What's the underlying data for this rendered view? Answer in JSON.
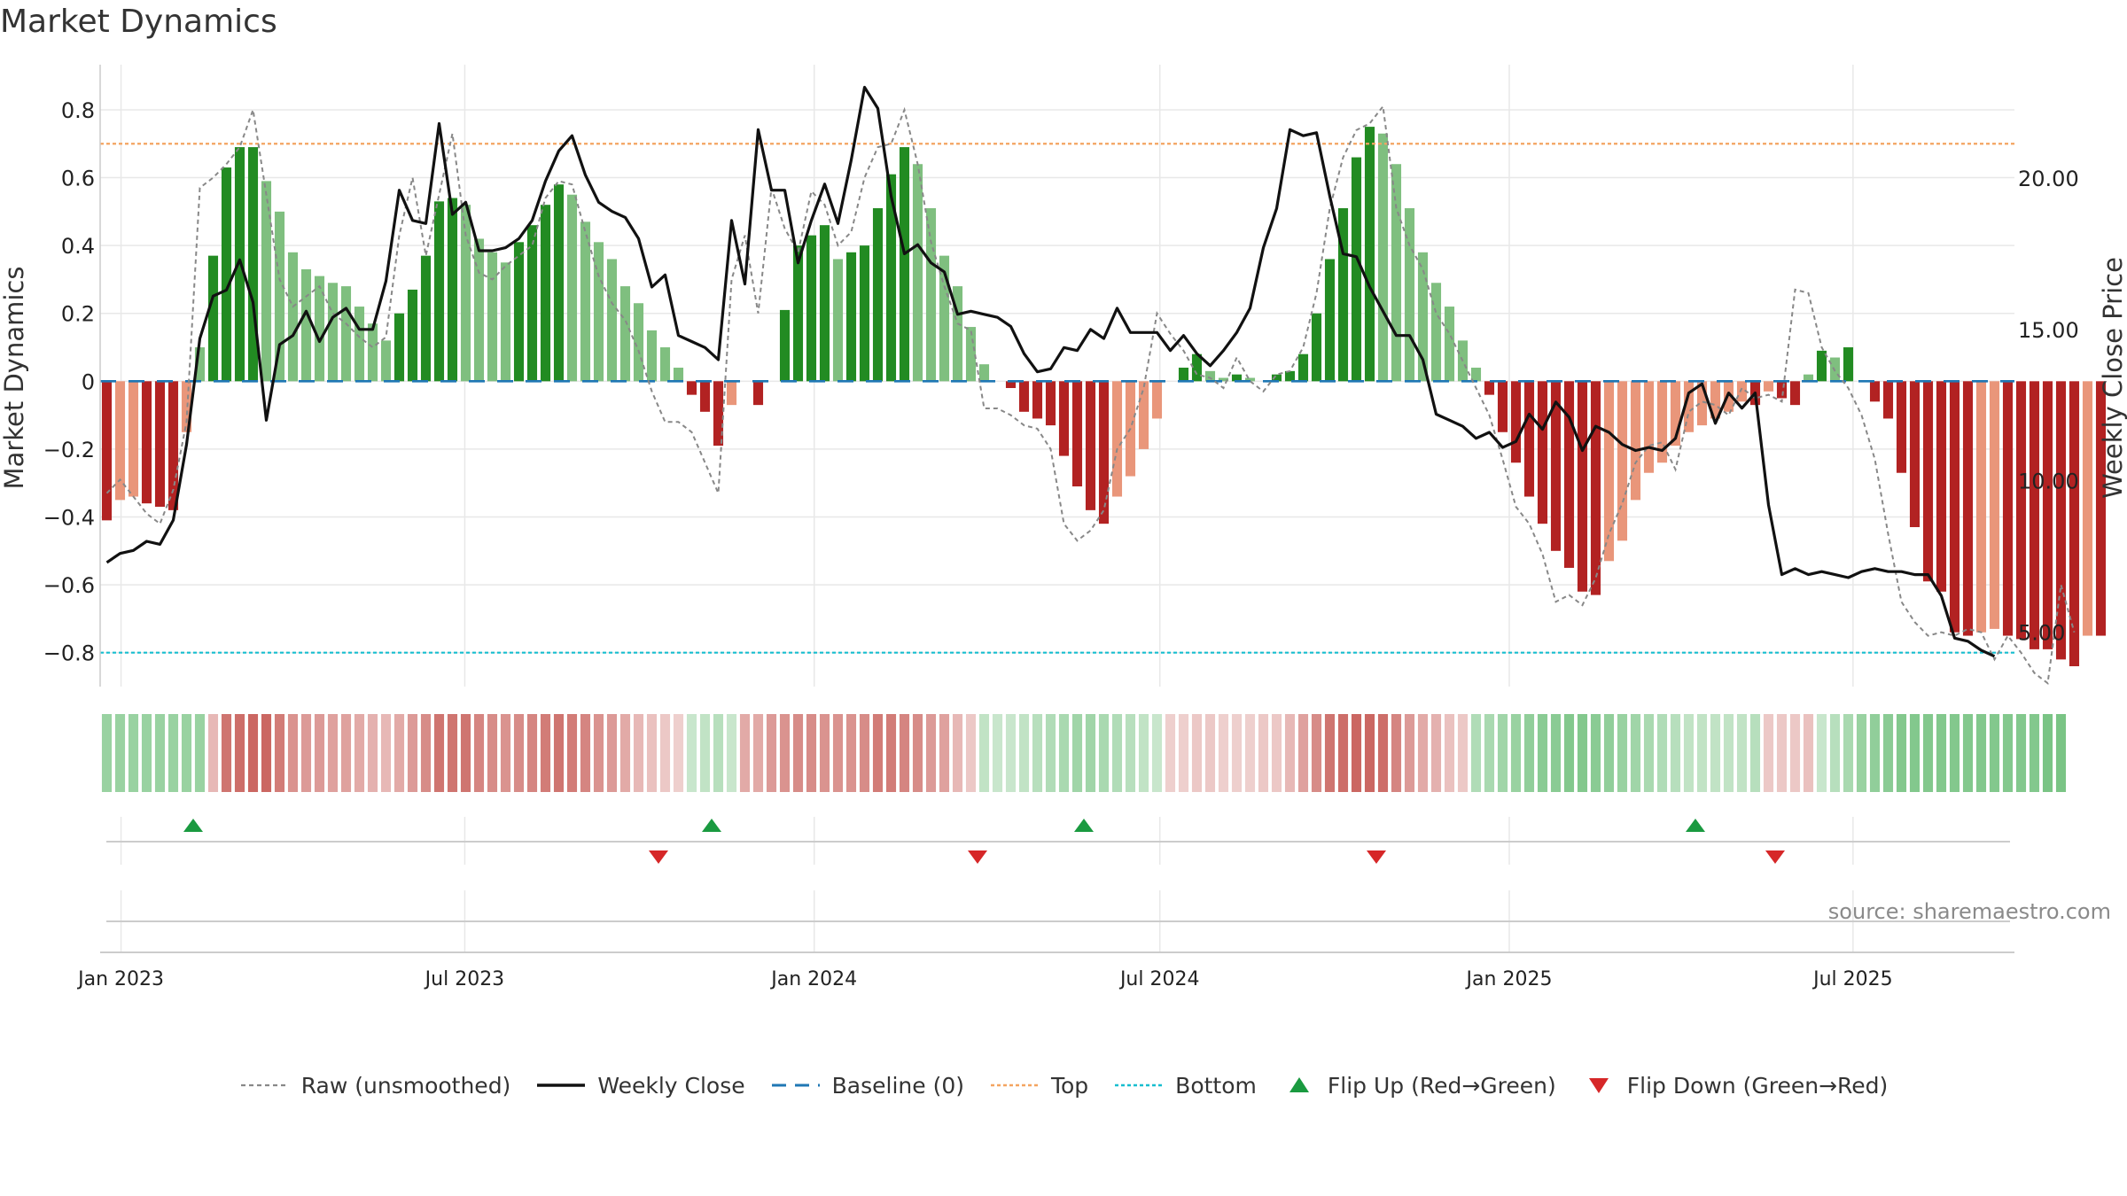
{
  "title": "Market Dynamics",
  "source_note": "source: sharemaestro.com",
  "colors": {
    "strong_green": "#228b22",
    "light_green": "#7fbf7f",
    "strong_red": "#b22222",
    "light_red": "#e9967a",
    "raw_line": "#888888",
    "close_line": "#111111",
    "baseline": "#1f77b4",
    "top_line": "#f4a460",
    "bottom_line": "#17becf",
    "flip_up": "#1a9a40",
    "flip_down": "#d62728",
    "grid": "#e8e8e8"
  },
  "legend": [
    {
      "key": "raw",
      "label": "Raw (unsmoothed)"
    },
    {
      "key": "close",
      "label": "Weekly Close"
    },
    {
      "key": "baseline",
      "label": "Baseline (0)"
    },
    {
      "key": "top",
      "label": "Top"
    },
    {
      "key": "bottom",
      "label": "Bottom"
    },
    {
      "key": "flip_up",
      "label": "Flip Up (Red→Green)"
    },
    {
      "key": "flip_down",
      "label": "Flip Down (Green→Red)"
    }
  ],
  "chart_data": {
    "type": "bar",
    "title": "Market Dynamics",
    "ylabel": "Market Dynamics",
    "y2label": "Weekly Close Price",
    "ylim": [
      -0.9,
      0.92
    ],
    "y_ticks": [
      0.8,
      0.6,
      0.4,
      0.2,
      0,
      -0.2,
      -0.4,
      -0.6,
      -0.8
    ],
    "y_tick_labels": [
      "0.8",
      "0.6",
      "0.4",
      "0.2",
      "0",
      "−0.2",
      "−0.4",
      "−0.6",
      "−0.8"
    ],
    "y2lim": [
      3.2,
      23.6
    ],
    "y2_ticks": [
      20,
      15,
      10,
      5
    ],
    "y2_tick_labels": [
      "20.00",
      "15.00",
      "10.00",
      "5.00"
    ],
    "x_start": "2022-12-21",
    "x_end": "2025-09-24",
    "x_ticks": [
      "2023-01-01",
      "2023-07-01",
      "2024-01-01",
      "2024-07-01",
      "2025-01-01",
      "2025-07-01"
    ],
    "x_tick_labels": [
      "Jan 2023",
      "Jul 2023",
      "Jan 2024",
      "Jul 2024",
      "Jan 2025",
      "Jul 2025"
    ],
    "top_level": 0.7,
    "bottom_level": -0.8,
    "baseline": 0,
    "grid": true,
    "legend_position": "bottom",
    "weeks_note": "weekly bars from 2022-12-21, one value per week",
    "values": [
      -0.41,
      -0.35,
      -0.34,
      -0.36,
      -0.37,
      -0.38,
      -0.15,
      0.1,
      0.37,
      0.63,
      0.69,
      0.69,
      0.59,
      0.5,
      0.38,
      0.33,
      0.31,
      0.29,
      0.28,
      0.22,
      0.17,
      0.12,
      0.2,
      0.27,
      0.37,
      0.53,
      0.54,
      0.52,
      0.42,
      0.38,
      0.35,
      0.41,
      0.46,
      0.52,
      0.58,
      0.55,
      0.47,
      0.41,
      0.36,
      0.28,
      0.23,
      0.15,
      0.1,
      0.04,
      -0.04,
      -0.09,
      -0.19,
      -0.07,
      0,
      -0.07,
      0,
      0.21,
      0.4,
      0.43,
      0.46,
      0.36,
      0.38,
      0.4,
      0.51,
      0.61,
      0.69,
      0.64,
      0.51,
      0.37,
      0.28,
      0.16,
      0.05,
      0,
      -0.02,
      -0.09,
      -0.11,
      -0.13,
      -0.22,
      -0.31,
      -0.38,
      -0.42,
      -0.34,
      -0.28,
      -0.2,
      -0.11,
      0,
      0.04,
      0.08,
      0.03,
      0.01,
      0.02,
      0.01,
      0,
      0.02,
      0.03,
      0.08,
      0.2,
      0.36,
      0.51,
      0.66,
      0.75,
      0.73,
      0.64,
      0.51,
      0.38,
      0.29,
      0.22,
      0.12,
      0.04,
      -0.04,
      -0.15,
      -0.24,
      -0.34,
      -0.42,
      -0.5,
      -0.55,
      -0.62,
      -0.63,
      -0.53,
      -0.47,
      -0.35,
      -0.27,
      -0.24,
      -0.19,
      -0.15,
      -0.13,
      -0.11,
      -0.09,
      -0.06,
      -0.07,
      -0.03,
      -0.05,
      -0.07,
      0.02,
      0.09,
      0.07,
      0.1,
      0,
      -0.06,
      -0.11,
      -0.27,
      -0.43,
      -0.59,
      -0.62,
      -0.74,
      -0.75,
      -0.74,
      -0.73,
      -0.75,
      -0.76,
      -0.79,
      -0.79,
      -0.82,
      -0.84,
      -0.75,
      -0.75
    ],
    "raw_values": [
      -0.33,
      -0.29,
      -0.34,
      -0.39,
      -0.42,
      -0.32,
      -0.12,
      0.57,
      0.6,
      0.64,
      0.69,
      0.8,
      0.55,
      0.3,
      0.22,
      0.25,
      0.28,
      0.2,
      0.17,
      0.13,
      0.1,
      0.13,
      0.43,
      0.6,
      0.37,
      0.55,
      0.73,
      0.43,
      0.32,
      0.3,
      0.34,
      0.37,
      0.4,
      0.54,
      0.59,
      0.58,
      0.44,
      0.31,
      0.23,
      0.18,
      0.09,
      -0.03,
      -0.12,
      -0.12,
      -0.15,
      -0.24,
      -0.33,
      0.3,
      0.43,
      0.2,
      0.57,
      0.45,
      0.38,
      0.56,
      0.52,
      0.4,
      0.44,
      0.6,
      0.69,
      0.7,
      0.8,
      0.64,
      0.41,
      0.28,
      0.17,
      0.15,
      -0.08,
      -0.08,
      -0.1,
      -0.13,
      -0.14,
      -0.2,
      -0.42,
      -0.47,
      -0.44,
      -0.38,
      -0.2,
      -0.14,
      -0.02,
      0.2,
      0.14,
      0.09,
      0.02,
      0.01,
      -0.02,
      0.07,
      0,
      -0.03,
      0.02,
      0.03,
      0.1,
      0.26,
      0.51,
      0.66,
      0.74,
      0.76,
      0.81,
      0.51,
      0.4,
      0.33,
      0.2,
      0.14,
      0.06,
      -0.02,
      -0.1,
      -0.23,
      -0.37,
      -0.42,
      -0.51,
      -0.65,
      -0.63,
      -0.66,
      -0.58,
      -0.45,
      -0.36,
      -0.24,
      -0.19,
      -0.18,
      -0.26,
      -0.09,
      -0.06,
      -0.07,
      -0.1,
      -0.02,
      -0.05,
      -0.04,
      -0.06,
      0.27,
      0.26,
      0.1,
      0.03,
      -0.02,
      -0.1,
      -0.23,
      -0.45,
      -0.65,
      -0.71,
      -0.75,
      -0.74,
      -0.75,
      -0.73,
      -0.74,
      -0.82,
      -0.75,
      -0.8,
      -0.86,
      -0.89,
      -0.6,
      -0.74
    ],
    "close_values": [
      7.3,
      7.6,
      7.7,
      8.0,
      7.9,
      8.7,
      11.2,
      14.7,
      16.1,
      16.3,
      17.3,
      15.9,
      12.0,
      14.5,
      14.8,
      15.6,
      14.6,
      15.4,
      15.7,
      15.0,
      15.0,
      16.6,
      19.6,
      18.6,
      18.5,
      21.8,
      18.8,
      19.2,
      17.6,
      17.6,
      17.7,
      18.0,
      18.6,
      19.9,
      20.9,
      21.4,
      20.1,
      19.2,
      18.9,
      18.7,
      18.0,
      16.4,
      16.8,
      14.8,
      14.6,
      14.4,
      14.0,
      18.6,
      16.5,
      21.6,
      19.6,
      19.6,
      17.2,
      18.6,
      19.8,
      18.5,
      20.6,
      23.0,
      22.3,
      19.4,
      17.5,
      17.8,
      17.2,
      16.9,
      15.5,
      15.6,
      15.5,
      15.4,
      15.1,
      14.2,
      13.6,
      13.7,
      14.4,
      14.3,
      15.0,
      14.7,
      15.7,
      14.9,
      14.9,
      14.9,
      14.3,
      14.8,
      14.2,
      13.8,
      14.3,
      14.9,
      15.7,
      17.7,
      19.0,
      21.6,
      21.4,
      21.5,
      19.4,
      17.5,
      17.4,
      16.4,
      15.6,
      14.8,
      14.8,
      14.0,
      12.2,
      12.0,
      11.8,
      11.4,
      11.6,
      11.1,
      11.3,
      12.2,
      11.7,
      12.6,
      12.1,
      11.0,
      11.8,
      11.6,
      11.2,
      11.0,
      11.1,
      11.0,
      11.4,
      12.9,
      13.2,
      11.9,
      12.9,
      12.4,
      12.9,
      9.2,
      6.9,
      7.1,
      6.9,
      7.0,
      6.9,
      6.8,
      7.0,
      7.1,
      7.0,
      7.0,
      6.9,
      6.9,
      6.2,
      4.8,
      4.7,
      4.4,
      4.2
    ],
    "flip_up_dates": [
      "2023-02-08",
      "2023-11-08",
      "2024-05-22",
      "2025-04-09"
    ],
    "flip_down_dates": [
      "2023-10-11",
      "2024-03-27",
      "2024-10-23",
      "2025-05-21"
    ],
    "regime_strip": [
      0.55,
      0.55,
      0.55,
      0.55,
      0.55,
      0.55,
      0.55,
      0.55,
      -0.35,
      -0.8,
      -0.85,
      -0.9,
      -0.9,
      -0.75,
      -0.6,
      -0.55,
      -0.55,
      -0.5,
      -0.5,
      -0.45,
      -0.4,
      -0.35,
      -0.45,
      -0.55,
      -0.65,
      -0.8,
      -0.8,
      -0.8,
      -0.7,
      -0.65,
      -0.6,
      -0.65,
      -0.7,
      -0.75,
      -0.8,
      -0.75,
      -0.7,
      -0.6,
      -0.55,
      -0.45,
      -0.35,
      -0.3,
      -0.25,
      -0.2,
      0.25,
      0.3,
      0.35,
      0.25,
      -0.45,
      -0.45,
      -0.55,
      -0.6,
      -0.65,
      -0.65,
      -0.6,
      -0.6,
      -0.6,
      -0.65,
      -0.75,
      -0.75,
      -0.7,
      -0.65,
      -0.55,
      -0.5,
      -0.35,
      -0.25,
      0.3,
      0.25,
      0.25,
      0.3,
      0.35,
      0.4,
      0.45,
      0.5,
      0.5,
      0.45,
      0.4,
      0.35,
      0.3,
      0.25,
      -0.2,
      -0.2,
      -0.25,
      -0.25,
      -0.2,
      -0.2,
      -0.2,
      -0.25,
      -0.25,
      -0.35,
      -0.5,
      -0.65,
      -0.8,
      -0.85,
      -0.9,
      -0.9,
      -0.85,
      -0.7,
      -0.55,
      -0.45,
      -0.4,
      -0.3,
      -0.25,
      0.4,
      0.45,
      0.5,
      0.55,
      0.6,
      0.65,
      0.65,
      0.7,
      0.7,
      0.65,
      0.6,
      0.55,
      0.5,
      0.45,
      0.4,
      0.35,
      0.3,
      0.3,
      0.3,
      0.3,
      0.3,
      0.35,
      -0.25,
      -0.25,
      -0.25,
      -0.3,
      0.25,
      0.35,
      0.45,
      0.55,
      0.6,
      0.65,
      0.7,
      0.7,
      0.7,
      0.7,
      0.7,
      0.7,
      0.7,
      0.7,
      0.7,
      0.7,
      0.7,
      0.75,
      0.75
    ]
  }
}
